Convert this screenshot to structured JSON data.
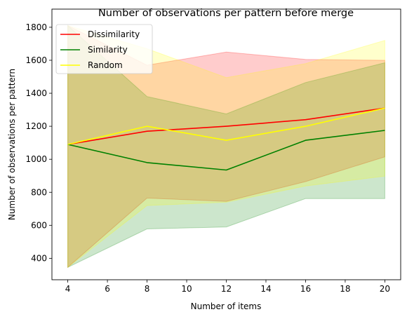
{
  "chart_data": {
    "type": "line",
    "title": "Number of observations per pattern before merge",
    "xlabel": "Number of items",
    "ylabel": "Number of observations per pattern",
    "x": [
      4,
      8,
      12,
      16,
      20
    ],
    "xlim": [
      3.2,
      20.8
    ],
    "ylim": [
      270,
      1910
    ],
    "xticks": [
      4,
      6,
      8,
      10,
      12,
      14,
      16,
      18,
      20
    ],
    "yticks": [
      400,
      600,
      800,
      1000,
      1200,
      1400,
      1600,
      1800
    ],
    "grid": false,
    "legend_position": "top-left",
    "series": [
      {
        "name": "Dissimilarity",
        "color": "#ff0000",
        "values": [
          1090,
          1170,
          1200,
          1240,
          1310
        ],
        "band_upper": [
          1810,
          1570,
          1650,
          1605,
          1600
        ],
        "band_lower": [
          345,
          765,
          745,
          865,
          1015
        ],
        "band_color": "#ff0000"
      },
      {
        "name": "Similarity",
        "color": "#008000",
        "values": [
          1090,
          980,
          935,
          1115,
          1175
        ],
        "band_upper": [
          1810,
          1380,
          1275,
          1465,
          1585
        ],
        "band_lower": [
          345,
          578,
          590,
          762,
          762
        ],
        "band_color": "#008000"
      },
      {
        "name": "Random",
        "color": "#ffff00",
        "values": [
          1090,
          1200,
          1115,
          1200,
          1310
        ],
        "band_upper": [
          1810,
          1670,
          1495,
          1580,
          1720
        ],
        "band_lower": [
          345,
          720,
          740,
          838,
          898
        ],
        "band_color": "#ffff00"
      }
    ]
  }
}
